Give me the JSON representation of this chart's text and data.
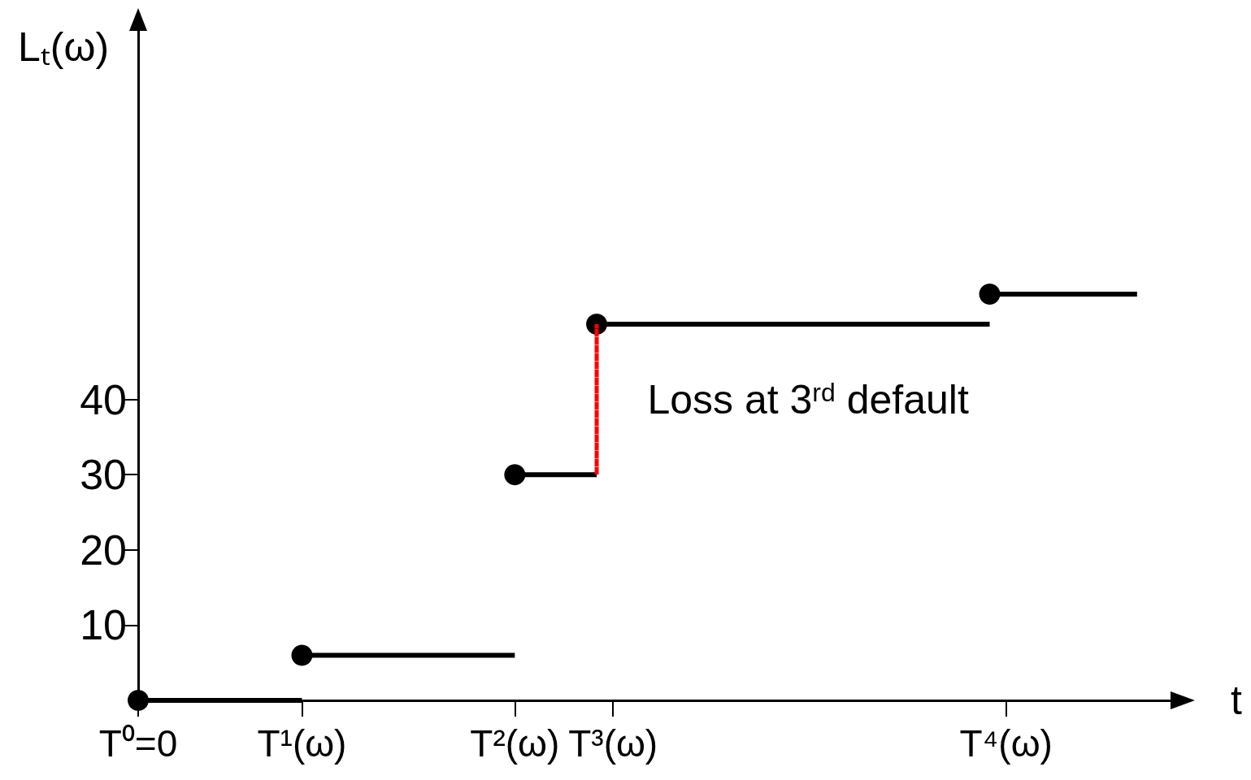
{
  "chart_data": {
    "type": "step",
    "xlabel": "t",
    "ylabel": "Lₜ(ω)",
    "categories": [
      "T⁰=0",
      null,
      null,
      null,
      null,
      null,
      null,
      null,
      null,
      null,
      "T¹(ω)",
      null,
      null,
      null,
      null,
      null,
      null,
      null,
      null,
      null,
      null,
      null,
      null,
      "T²(ω)",
      null,
      null,
      null,
      null,
      null,
      "T³(ω)",
      null,
      null,
      null,
      null,
      null,
      null,
      null,
      null,
      null,
      null,
      null,
      null,
      null,
      null,
      null,
      null,
      null,
      null,
      null,
      null,
      null,
      null,
      null,
      "T⁴(ω)",
      null,
      null,
      null,
      null,
      null,
      null,
      null,
      null,
      null,
      null
    ],
    "ylim": [
      0,
      89
    ],
    "yticks": [
      10,
      20,
      30,
      40
    ],
    "series": [
      {
        "type": "bar",
        "color": "#ff0000",
        "line_style": "dotted",
        "values": [
          null,
          null,
          null,
          null,
          null,
          null,
          null,
          null,
          null,
          null,
          null,
          null,
          null,
          null,
          null,
          null,
          null,
          null,
          null,
          null,
          null,
          null,
          null,
          null,
          null,
          null,
          null,
          null,
          20,
          null,
          null,
          null,
          null,
          null,
          null,
          null,
          null,
          null,
          null,
          null,
          null,
          null,
          null,
          null,
          null,
          null,
          null,
          null,
          null,
          null,
          null,
          null,
          null,
          null,
          null,
          null,
          null,
          null,
          null,
          null,
          null,
          null,
          null,
          null
        ],
        "base": [
          null,
          null,
          null,
          null,
          null,
          null,
          null,
          null,
          null,
          null,
          null,
          null,
          null,
          null,
          null,
          null,
          null,
          null,
          null,
          null,
          null,
          null,
          null,
          null,
          null,
          null,
          null,
          null,
          30,
          null,
          null,
          null,
          null,
          null,
          null,
          null,
          null,
          null,
          null,
          null,
          null,
          null,
          null,
          null,
          null,
          null,
          null,
          null,
          null,
          null,
          null,
          null,
          null,
          null,
          null,
          null,
          null,
          null,
          null,
          null,
          null,
          null,
          null,
          null
        ]
      },
      {
        "color": "#000000",
        "marker": "circle",
        "values": [
          0,
          null,
          null,
          null,
          null,
          null,
          null,
          null,
          null,
          null,
          6,
          null,
          null,
          null,
          null,
          null,
          null,
          null,
          null,
          null,
          null,
          null,
          null,
          30,
          null,
          null,
          null,
          null,
          50,
          null,
          null,
          null,
          null,
          null,
          null,
          null,
          null,
          null,
          null,
          null,
          null,
          null,
          null,
          null,
          null,
          null,
          null,
          null,
          null,
          null,
          null,
          null,
          54,
          null,
          null,
          null,
          null,
          null,
          null,
          null,
          null,
          54,
          null,
          null
        ]
      }
    ],
    "annotations": [
      "Loss at 3$^{rd}$ default"
    ]
  }
}
